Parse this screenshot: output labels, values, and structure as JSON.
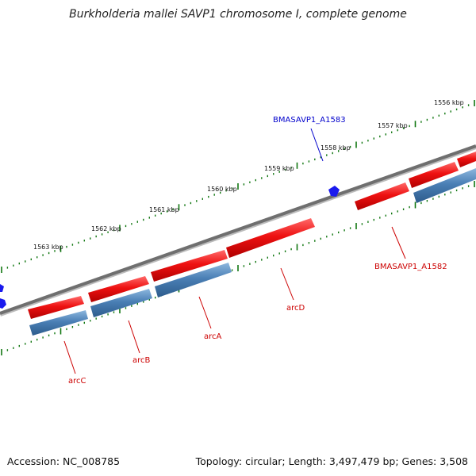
{
  "title": "Burkholderia mallei SAVP1 chromosome I, complete genome",
  "footer": {
    "accession": "Accession: NC_008785",
    "topology": "Topology: circular; Length: 3,497,479 bp; Genes: 3,508"
  },
  "kbp_labels": [
    "1556 kbp",
    "1557 kbp",
    "1558 kbp",
    "1559 kbp",
    "1560 kbp",
    "1561 kbp",
    "1562 kbp",
    "1563 kbp"
  ],
  "genes": [
    {
      "name": "BMASAVP1_A1583",
      "color": "#0000cc"
    },
    {
      "name": "BMASAVP1_A1582",
      "color": "#cc0000"
    },
    {
      "name": "arcD",
      "color": "#cc0000"
    },
    {
      "name": "arcA",
      "color": "#cc0000"
    },
    {
      "name": "arcB",
      "color": "#cc0000"
    },
    {
      "name": "arcC",
      "color": "#cc0000"
    }
  ],
  "colors": {
    "forward_feature": "#ee1111",
    "reverse_feature": "#4a7fb5",
    "backbone": "#777777",
    "ruler_major_tick": "#117711",
    "ruler_minor_tick": "#117711",
    "small_feature": "#1a1aee"
  }
}
